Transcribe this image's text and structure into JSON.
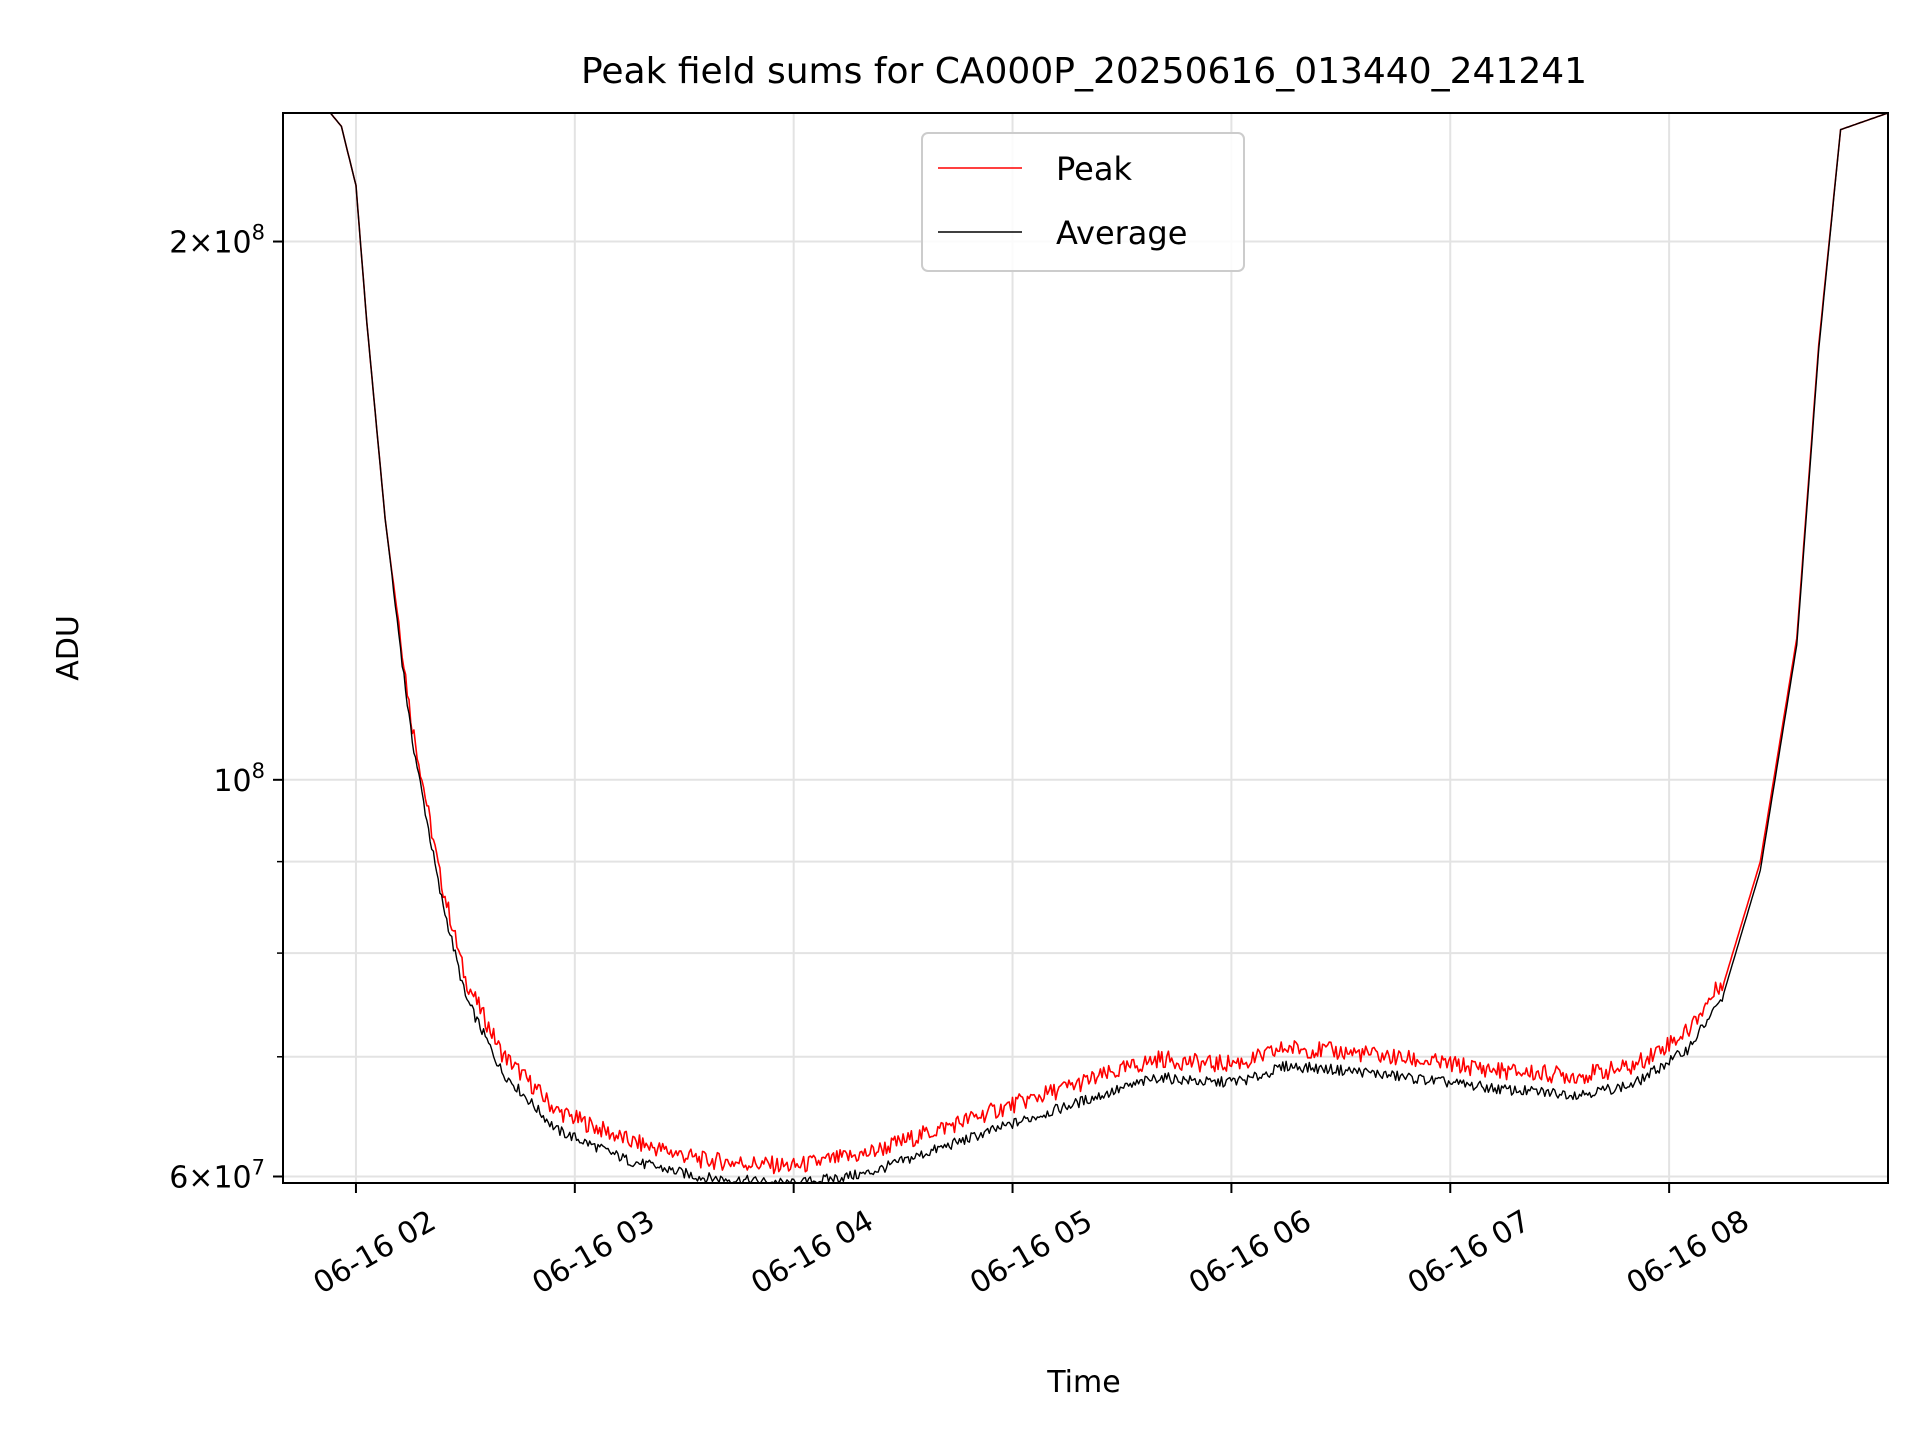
{
  "chart_data": {
    "type": "line",
    "title": "Peak field sums for CA000P_20250616_013440_241241",
    "xlabel": "Time",
    "ylabel": "ADU",
    "y_scale": "log",
    "grid": true,
    "legend_position": "top-center",
    "xlim": [
      "06-16 01:35",
      "06-16 08:55"
    ],
    "ylim": [
      59500000,
      236000000
    ],
    "x_ticks": [
      "06-16 01:55",
      "06-16 02:55",
      "06-16 03:55",
      "06-16 04:55",
      "06-16 05:55",
      "06-16 06:55",
      "06-16 07:55"
    ],
    "x_tick_labels": [
      "06-16 02",
      "06-16 03",
      "06-16 04",
      "06-16 05",
      "06-16 06",
      "06-16 07",
      "06-16 08"
    ],
    "y_major_ticks": [
      60000000,
      100000000,
      200000000
    ],
    "y_tick_labels": [
      {
        "mantissa": "6",
        "times": "×",
        "base": "10",
        "exp": "7"
      },
      {
        "mantissa": "",
        "times": "",
        "base": "10",
        "exp": "8"
      },
      {
        "mantissa": "2",
        "times": "×",
        "base": "10",
        "exp": "8"
      }
    ],
    "y_minor_ticks": [
      70000000,
      80000000,
      90000000
    ],
    "series": [
      {
        "name": "Peak",
        "color": "#ff0000",
        "x": [
          "06-16 01:35",
          "06-16 01:48",
          "06-16 01:51",
          "06-16 01:55",
          "06-16 01:58",
          "06-16 02:03",
          "06-16 02:10",
          "06-16 02:18",
          "06-16 02:25",
          "06-16 02:35",
          "06-16 02:50",
          "06-16 03:10",
          "06-16 03:30",
          "06-16 03:55",
          "06-16 04:15",
          "06-16 04:35",
          "06-16 04:55",
          "06-16 05:15",
          "06-16 05:35",
          "06-16 05:50",
          "06-16 06:00",
          "06-16 06:10",
          "06-16 06:30",
          "06-16 06:50",
          "06-16 07:10",
          "06-16 07:30",
          "06-16 07:45",
          "06-16 08:00",
          "06-16 08:10",
          "06-16 08:20",
          "06-16 08:30",
          "06-16 08:36",
          "06-16 08:42",
          "06-16 08:55"
        ],
        "y": [
          236000000,
          236000000,
          232000000,
          215000000,
          180000000,
          140000000,
          108000000,
          88000000,
          77000000,
          70000000,
          65000000,
          62500000,
          61000000,
          60500000,
          61500000,
          63500000,
          65500000,
          67500000,
          69500000,
          69000000,
          69300000,
          70500000,
          70000000,
          69200000,
          68400000,
          68000000,
          68800000,
          72000000,
          77000000,
          90000000,
          120000000,
          175000000,
          231000000,
          236000000
        ]
      },
      {
        "name": "Average",
        "color": "#000000",
        "x": [
          "06-16 01:35",
          "06-16 01:48",
          "06-16 01:51",
          "06-16 01:55",
          "06-16 01:58",
          "06-16 02:03",
          "06-16 02:10",
          "06-16 02:18",
          "06-16 02:25",
          "06-16 02:35",
          "06-16 02:50",
          "06-16 03:10",
          "06-16 03:30",
          "06-16 03:55",
          "06-16 04:15",
          "06-16 04:35",
          "06-16 04:55",
          "06-16 05:15",
          "06-16 05:35",
          "06-16 05:50",
          "06-16 06:00",
          "06-16 06:10",
          "06-16 06:30",
          "06-16 06:50",
          "06-16 07:10",
          "06-16 07:30",
          "06-16 07:45",
          "06-16 08:00",
          "06-16 08:10",
          "06-16 08:20",
          "06-16 08:30",
          "06-16 08:36",
          "06-16 08:42",
          "06-16 08:55"
        ],
        "y": [
          236000000,
          236000000,
          232000000,
          215000000,
          180000000,
          140000000,
          107000000,
          87000000,
          76000000,
          69000000,
          64000000,
          61500000,
          60200000,
          59700000,
          60500000,
          62500000,
          64500000,
          66500000,
          68500000,
          68000000,
          68300000,
          69500000,
          69000000,
          68200000,
          67400000,
          67000000,
          67800000,
          71000000,
          76000000,
          89000000,
          119000000,
          174000000,
          231000000,
          236000000
        ]
      }
    ]
  }
}
